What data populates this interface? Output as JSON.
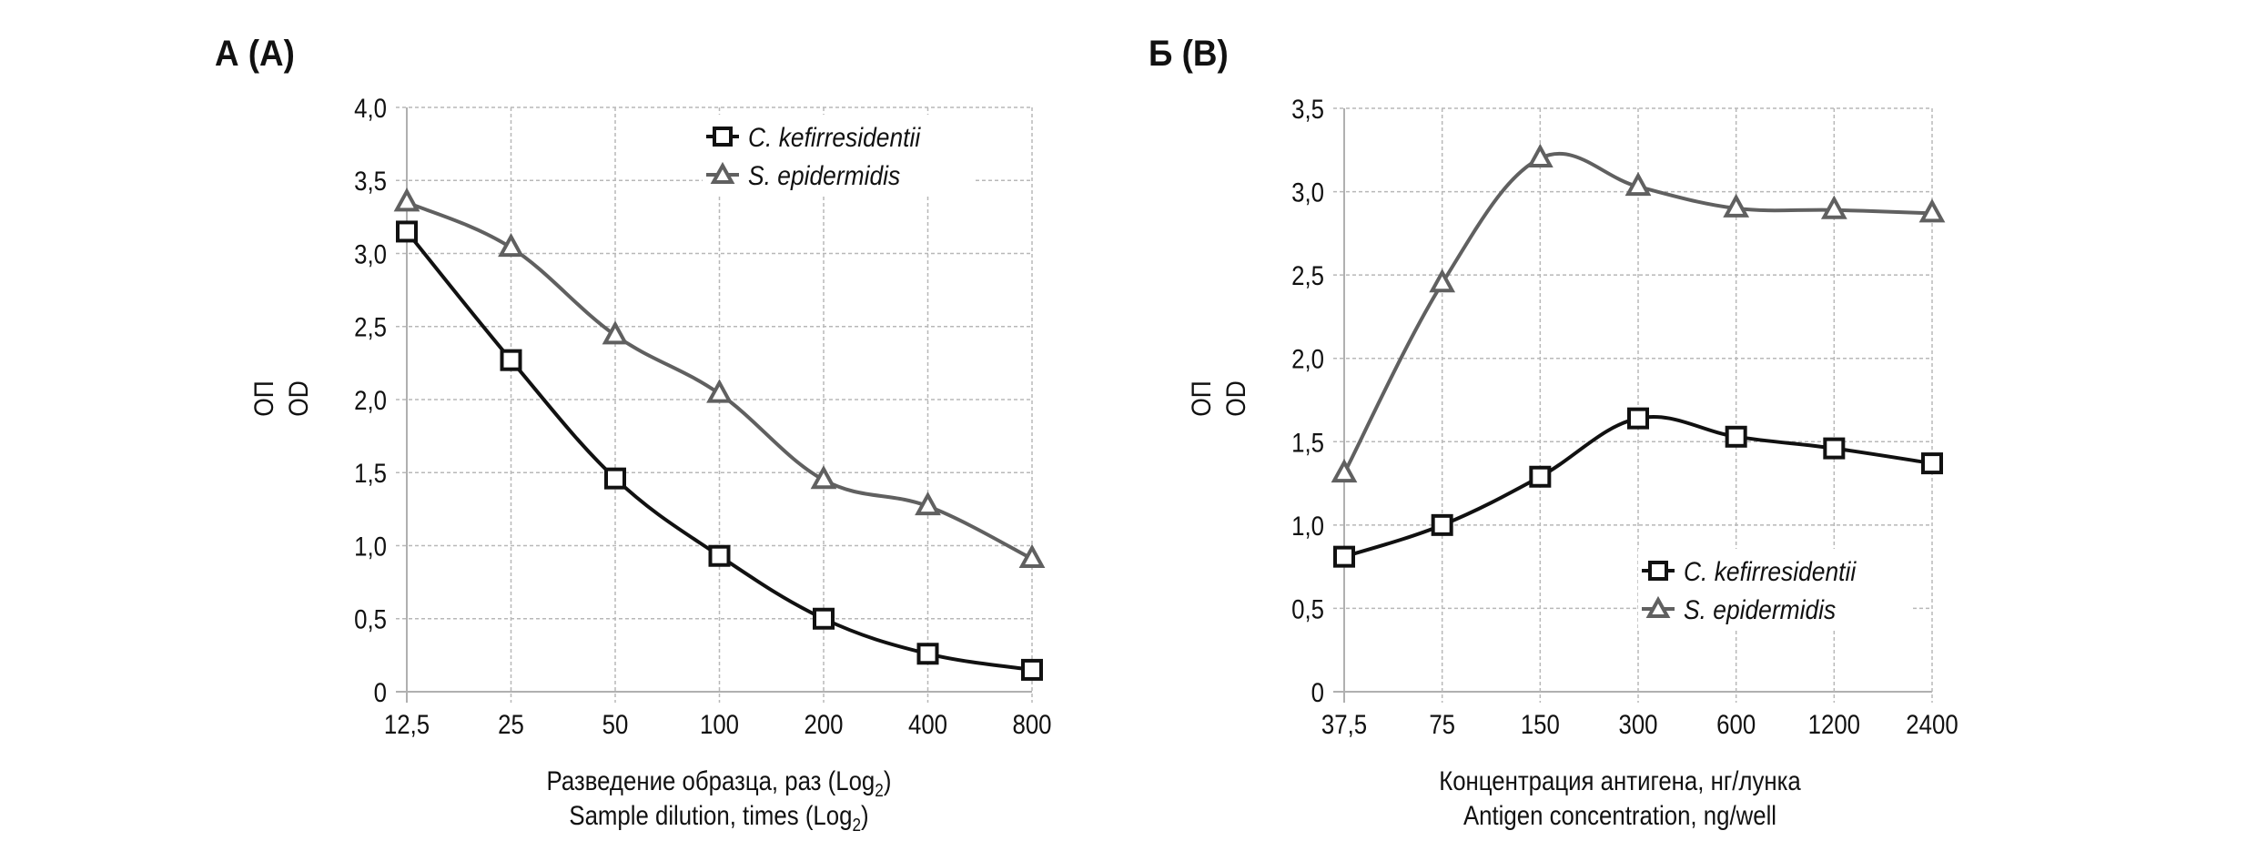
{
  "chart_data": [
    {
      "type": "line",
      "panel_label": "А (A)",
      "title": "",
      "x": [
        "12,5",
        "25",
        "50",
        "100",
        "200",
        "400",
        "800"
      ],
      "categories": [
        "12,5",
        "25",
        "50",
        "100",
        "200",
        "400",
        "800"
      ],
      "series": [
        {
          "name": "C. kefirresidentii",
          "marker": "square",
          "color": "#111111",
          "values": [
            3.15,
            2.27,
            1.46,
            0.93,
            0.5,
            0.26,
            0.15
          ]
        },
        {
          "name": "S. epidermidis",
          "marker": "triangle",
          "color": "#606060",
          "values": [
            3.35,
            3.04,
            2.44,
            2.04,
            1.45,
            1.27,
            0.91
          ]
        }
      ],
      "ylabel": [
        "ОП",
        "OD"
      ],
      "xlabel": [
        "Разведение образца, раз (Log",
        "2",
        ")",
        "Sample dilution, times (Log",
        "2",
        ")"
      ],
      "xlabel_lines": [
        {
          "text": "Разведение образца, раз (Log",
          "sub": "2",
          "tail": ")"
        },
        {
          "text": "Sample dilution, times (Log",
          "sub": "2",
          "tail": ")"
        }
      ],
      "ylim": [
        0,
        4.0
      ],
      "yticks": [
        0,
        0.5,
        1.0,
        1.5,
        2.0,
        2.5,
        3.0,
        3.5,
        4.0
      ],
      "ytick_labels": [
        "0",
        "0,5",
        "1,0",
        "1,5",
        "2,0",
        "2,5",
        "3,0",
        "3,5",
        "4,0"
      ],
      "grid": true,
      "legend_position": "top-right"
    },
    {
      "type": "line",
      "panel_label": "Б (B)",
      "title": "",
      "x": [
        "37,5",
        "75",
        "150",
        "300",
        "600",
        "1200",
        "2400"
      ],
      "categories": [
        "37,5",
        "75",
        "150",
        "300",
        "600",
        "1200",
        "2400"
      ],
      "series": [
        {
          "name": "C. kefirresidentii",
          "marker": "square",
          "color": "#111111",
          "values": [
            0.81,
            1.0,
            1.29,
            1.64,
            1.53,
            1.46,
            1.37
          ]
        },
        {
          "name": "S. epidermidis",
          "marker": "triangle",
          "color": "#606060",
          "values": [
            1.31,
            2.45,
            3.2,
            3.03,
            2.9,
            2.89,
            2.87
          ]
        }
      ],
      "ylabel": [
        "ОП",
        "OD"
      ],
      "xlabel_lines": [
        {
          "text": "Концентрация антигена, нг/лунка",
          "sub": "",
          "tail": ""
        },
        {
          "text": "Antigen concentration, ng/well",
          "sub": "",
          "tail": ""
        }
      ],
      "ylim": [
        0,
        3.5
      ],
      "yticks": [
        0,
        0.5,
        1.0,
        1.5,
        2.0,
        2.5,
        3.0,
        3.5
      ],
      "ytick_labels": [
        "0",
        "0,5",
        "1,0",
        "1,5",
        "2,0",
        "2,5",
        "3,0",
        "3,5"
      ],
      "grid": true,
      "legend_position": "bottom-right"
    }
  ]
}
